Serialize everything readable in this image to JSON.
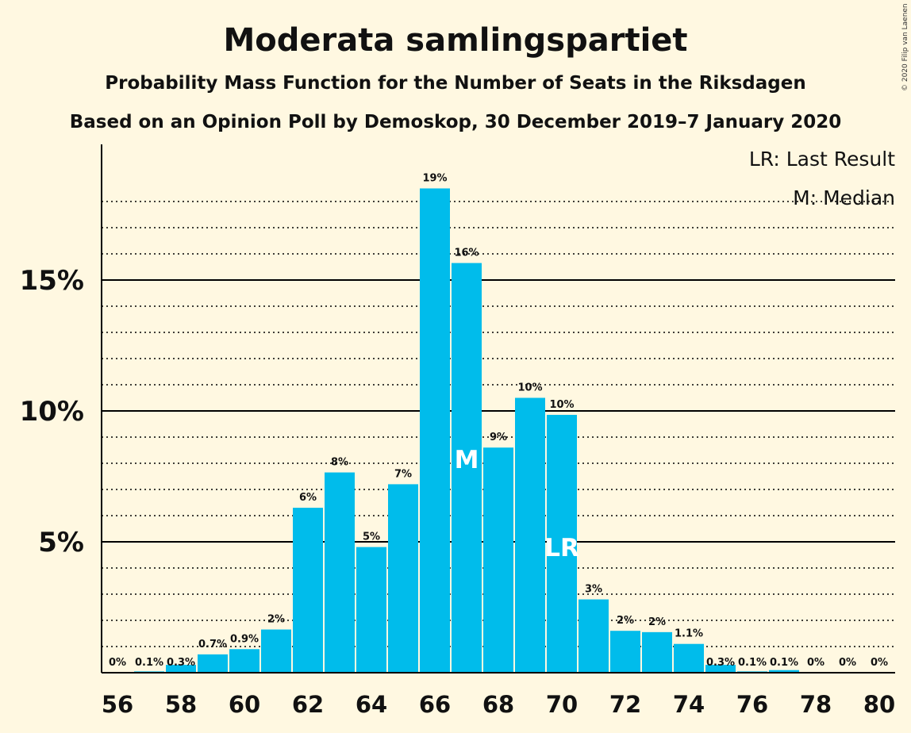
{
  "copyright": "© 2020 Filip van Laenen",
  "chart_data": {
    "type": "bar",
    "title": "Moderata samlingspartiet",
    "subtitle": "Probability Mass Function for the Number of Seats in the Riksdagen",
    "subtitle2": "Based on an Opinion Poll by Demoskop, 30 December 2019–7 January 2020",
    "xlabel": "",
    "ylabel": "",
    "ylim": [
      0,
      20
    ],
    "y_major_ticks": [
      5,
      10,
      15
    ],
    "y_tick_labels": [
      "5%",
      "10%",
      "15%"
    ],
    "y_minor_gridlines": [
      1,
      2,
      3,
      4,
      6,
      7,
      8,
      9,
      11,
      12,
      13,
      14,
      16,
      17,
      18
    ],
    "x_tick_labels": [
      "56",
      "58",
      "60",
      "62",
      "64",
      "66",
      "68",
      "70",
      "72",
      "74",
      "76",
      "78",
      "80"
    ],
    "categories": [
      56,
      57,
      58,
      59,
      60,
      61,
      62,
      63,
      64,
      65,
      66,
      67,
      68,
      69,
      70,
      71,
      72,
      73,
      74,
      75,
      76,
      77,
      78,
      79,
      80
    ],
    "values": [
      0,
      0.05,
      0.3,
      0.7,
      0.9,
      1.65,
      6.3,
      7.65,
      4.8,
      7.2,
      18.5,
      15.65,
      8.6,
      10.5,
      9.85,
      2.8,
      1.6,
      1.55,
      1.1,
      0.3,
      0.05,
      0.1,
      0,
      0,
      0
    ],
    "data_labels": [
      "0%",
      "0.1%",
      "0.3%",
      "0.7%",
      "0.9%",
      "2%",
      "6%",
      "8%",
      "5%",
      "7%",
      "19%",
      "16%",
      "9%",
      "10%",
      "10%",
      "3%",
      "2%",
      "2%",
      "1.1%",
      "0.3%",
      "0.1%",
      "0.1%",
      "0%",
      "0%",
      "0%"
    ],
    "bar_color": "#00BCEB",
    "background_color": "#FFF8E1",
    "markers": [
      {
        "seat": 67,
        "text": "M"
      },
      {
        "seat": 70,
        "text": "LR"
      }
    ],
    "legend": {
      "position": "top-right",
      "items": [
        "LR: Last Result",
        "M: Median"
      ]
    },
    "grid": true
  }
}
